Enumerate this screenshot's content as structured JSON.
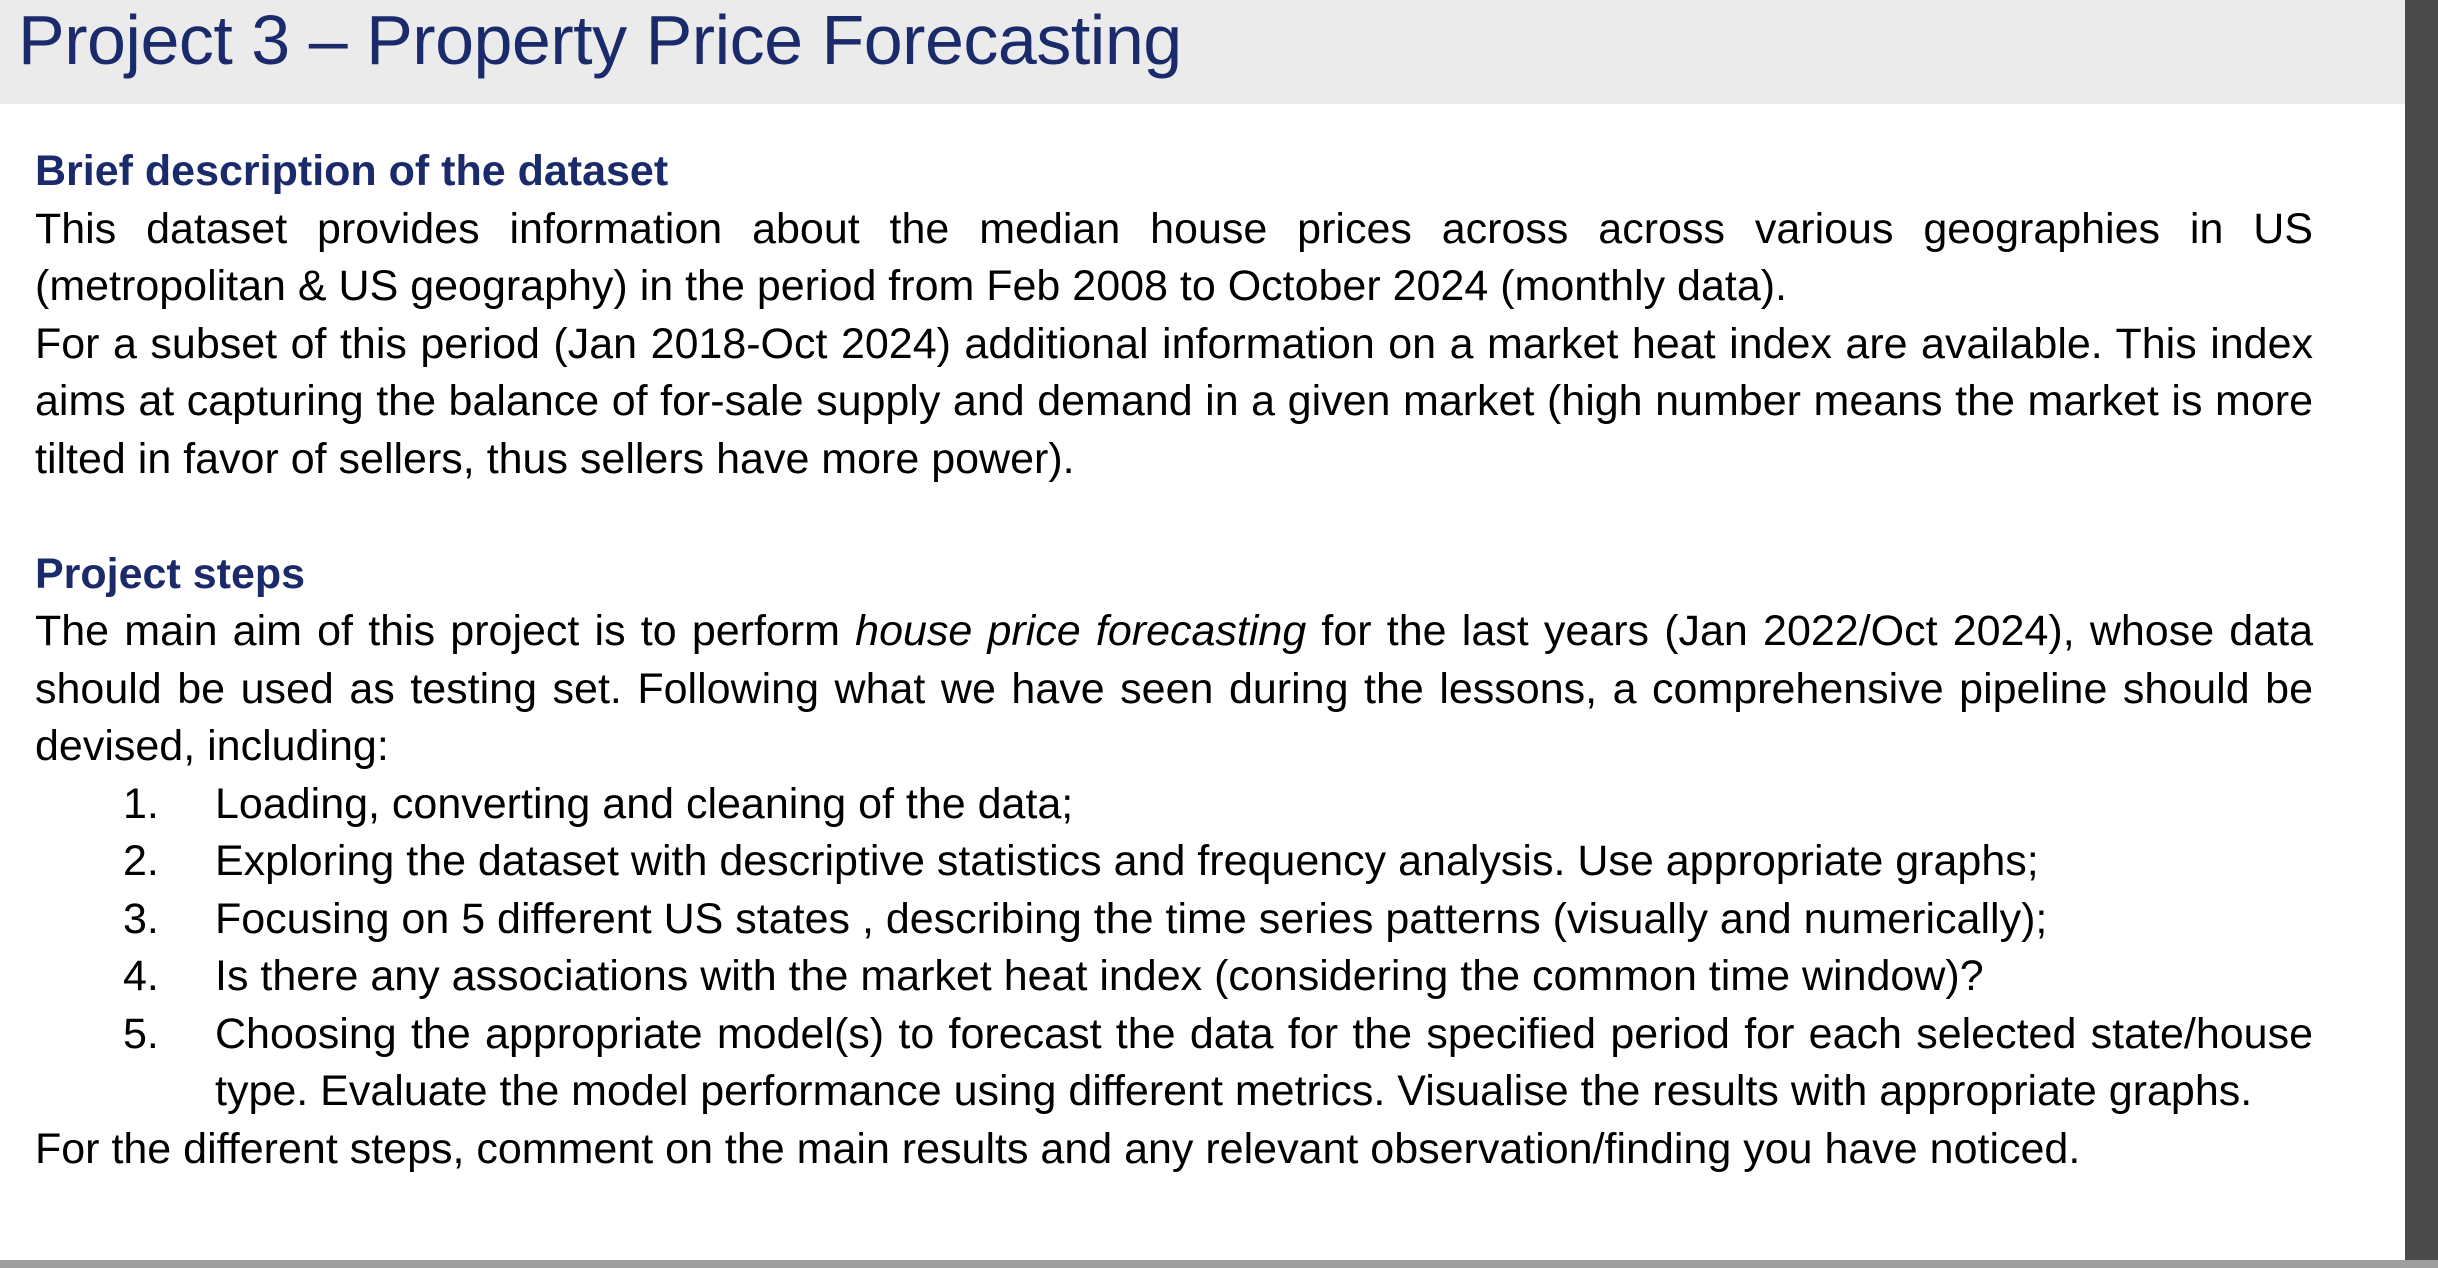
{
  "title": "Project 3 – Property Price Forecasting",
  "dataset_section": {
    "heading": "Brief description of the dataset",
    "paragraph_1": "This dataset provides information about the median house prices across across various geographies in US (metropolitan & US geography) in the period from Feb 2008 to October 2024 (monthly data).",
    "paragraph_2": "For a subset of this period (Jan 2018-Oct 2024) additional information on a market heat index are available. This index aims at capturing the balance of for-sale supply and demand in a given market (high number means the market is more tilted in favor of sellers, thus sellers have more power)."
  },
  "steps_section": {
    "heading": "Project steps",
    "intro_before": "The main aim of this project is to perform ",
    "intro_emphasis": "house price forecasting",
    "intro_after": " for the last years (Jan 2022/Oct 2024), whose data should be used as testing set. Following what we have seen during the lessons, a comprehensive pipeline should be devised, including:",
    "steps": [
      {
        "number": "1.",
        "text": "Loading, converting and cleaning of the data;"
      },
      {
        "number": "2.",
        "text": "Exploring the dataset with descriptive statistics and frequency analysis. Use appropriate graphs;"
      },
      {
        "number": "3.",
        "text": "Focusing on 5 different US states , describing the time series patterns (visually and numerically);"
      },
      {
        "number": "4.",
        "text": "Is there any associations with the market heat index (considering the common time window)?"
      },
      {
        "number": "5.",
        "text": "Choosing the appropriate model(s) to forecast the data for the specified period for each selected state/house type. Evaluate the model performance using different metrics. Visualise the results with appropriate graphs."
      }
    ],
    "closing": "For the different steps, comment on the main results and any relevant observation/finding you have noticed."
  }
}
